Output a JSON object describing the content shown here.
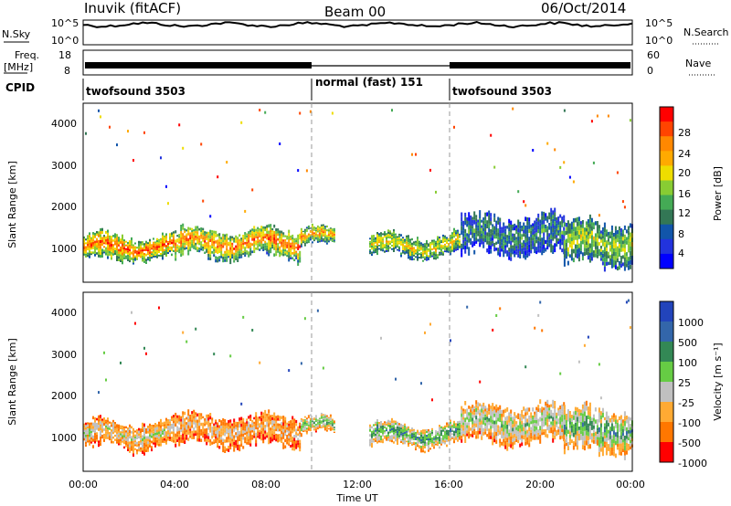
{
  "header": {
    "station": "Inuvik (fitACF)",
    "beam": "Beam 00",
    "date": "06/Oct/2014"
  },
  "top_panels": {
    "nsky_label": "N.Sky",
    "nsky_ticks": [
      "10^5",
      "10^0"
    ],
    "nsearch_label": "N.Search",
    "nsearch_ticks": [
      "10^5",
      "10^0"
    ],
    "freq_label": "Freq.",
    "freq_unit": "[MHz]",
    "freq_ticks": [
      "18",
      "8"
    ],
    "nave_label": "Nave",
    "nave_ticks": [
      "60",
      "0"
    ],
    "cpid_label": "CPID",
    "cpid_segments": [
      {
        "label": "twofsound 3503",
        "start": 0,
        "end": 10
      },
      {
        "label": "normal (fast) 151",
        "start": 10,
        "end": 16
      },
      {
        "label": "twofsound 3503",
        "start": 16,
        "end": 24
      }
    ]
  },
  "power_colorbar": {
    "title": "Power [dB]",
    "ticks": [
      "28",
      "24",
      "20",
      "16",
      "12",
      "8",
      "4"
    ],
    "colors": [
      "#ff0000",
      "#ff4400",
      "#ff8800",
      "#ffaa00",
      "#eedd00",
      "#88cc33",
      "#44aa55",
      "#337755",
      "#1155aa",
      "#2233dd",
      "#0000ff"
    ]
  },
  "velocity_colorbar": {
    "title": "Velocity [m s⁻¹]",
    "ticks": [
      "1000",
      "500",
      "100",
      "25",
      "-25",
      "-100",
      "-500",
      "-1000"
    ],
    "colors": [
      "#2244bb",
      "#3366aa",
      "#338855",
      "#66cc44",
      "#c0c0c0",
      "#ffaa33",
      "#ff7700",
      "#ff0000"
    ]
  },
  "axes": {
    "ylabel": "Slant Range [km]",
    "yticks": [
      "4000",
      "3000",
      "2000",
      "1000"
    ],
    "xlabel": "Time UT",
    "xticks": [
      "00:00",
      "04:00",
      "08:00",
      "12:00",
      "16:00",
      "20:00",
      "00:00"
    ]
  },
  "chart_data": {
    "type": "heatmap",
    "x_range_hours": [
      0,
      24
    ],
    "y_range_km": [
      180,
      4500
    ],
    "mode_changes_hours": [
      10,
      16
    ],
    "power_panel": {
      "colorbar": "power",
      "echo_bands": [
        {
          "start_h": 0.0,
          "end_h": 4.0,
          "center_km": 1000,
          "width_km": 600,
          "level": 0.85
        },
        {
          "start_h": 4.0,
          "end_h": 9.5,
          "center_km": 1100,
          "width_km": 650,
          "level": 0.8
        },
        {
          "start_h": 9.5,
          "end_h": 11.0,
          "center_km": 1250,
          "width_km": 400,
          "level": 0.75
        },
        {
          "start_h": 12.5,
          "end_h": 16.5,
          "center_km": 1050,
          "width_km": 500,
          "level": 0.65
        },
        {
          "start_h": 16.5,
          "end_h": 21.0,
          "center_km": 1300,
          "width_km": 900,
          "level": 0.35
        },
        {
          "start_h": 21.0,
          "end_h": 24.0,
          "center_km": 1100,
          "width_km": 1000,
          "level": 0.55
        }
      ]
    },
    "velocity_panel": {
      "colorbar": "velocity",
      "echo_bands": [
        {
          "start_h": 0.0,
          "end_h": 4.0,
          "center_km": 1050,
          "width_km": 650,
          "level": 0.45
        },
        {
          "start_h": 4.0,
          "end_h": 9.5,
          "center_km": 1150,
          "width_km": 700,
          "level": 0.35
        },
        {
          "start_h": 9.5,
          "end_h": 11.0,
          "center_km": 1250,
          "width_km": 400,
          "level": 0.6
        },
        {
          "start_h": 12.5,
          "end_h": 16.5,
          "center_km": 1050,
          "width_km": 500,
          "level": 0.7
        },
        {
          "start_h": 16.5,
          "end_h": 21.0,
          "center_km": 1300,
          "width_km": 900,
          "level": 0.55
        },
        {
          "start_h": 21.0,
          "end_h": 24.0,
          "center_km": 1150,
          "width_km": 1000,
          "level": 0.65
        }
      ]
    }
  }
}
